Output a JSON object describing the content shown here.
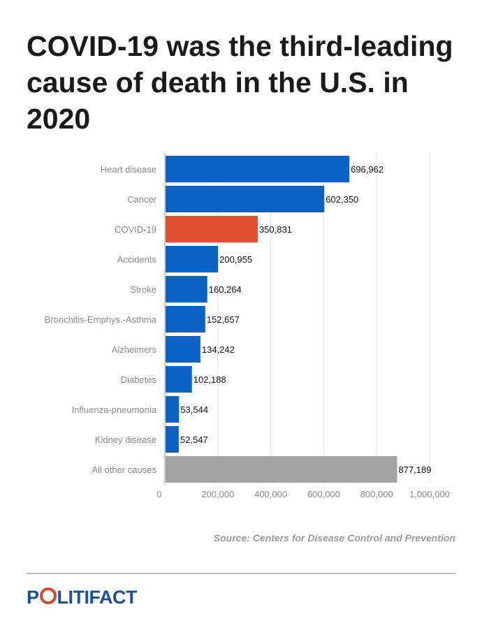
{
  "title": "COVID-19 was the third-leading cause of death in the U.S. in 2020",
  "source": "Source: Centers for Disease Control and Prevention",
  "logo": {
    "text": "POLITIFACT",
    "pre": "P",
    "post": "LITIFACT"
  },
  "colors": {
    "primary": "#0b63c3",
    "highlight": "#e0502e",
    "other": "#a3a3a3",
    "logo_blue": "#1d4f9c",
    "logo_red": "#d9462a"
  },
  "chart_data": {
    "type": "bar",
    "orientation": "horizontal",
    "title": "COVID-19 was the third-leading cause of death in the U.S. in 2020",
    "categories": [
      "Heart disease",
      "Cancer",
      "COVID-19",
      "Accidents",
      "Stroke",
      "Bronchitis-Emphys.-Asthma",
      "Alzheimers",
      "Diabetes",
      "Influenza-pneumonia",
      "Kidney disease",
      "All other causes"
    ],
    "values": [
      696962,
      602350,
      350831,
      200955,
      160264,
      152657,
      134242,
      102188,
      53544,
      52547,
      877189
    ],
    "value_labels": [
      "696,962",
      "602,350",
      "350,831",
      "200,955",
      "160,264",
      "152,657",
      "134,242",
      "102,188",
      "53,544",
      "52,547",
      "877,189"
    ],
    "bar_colors": [
      "#0b63c3",
      "#0b63c3",
      "#e0502e",
      "#0b63c3",
      "#0b63c3",
      "#0b63c3",
      "#0b63c3",
      "#0b63c3",
      "#0b63c3",
      "#0b63c3",
      "#a3a3a3"
    ],
    "xlim": [
      0,
      1000000
    ],
    "xticks": [
      0,
      200000,
      400000,
      600000,
      800000,
      1000000
    ],
    "xtick_labels": [
      "0",
      "200,000",
      "400,000",
      "600,000",
      "800,000",
      "1,000,000"
    ],
    "grid": true,
    "xlabel": "",
    "ylabel": ""
  }
}
